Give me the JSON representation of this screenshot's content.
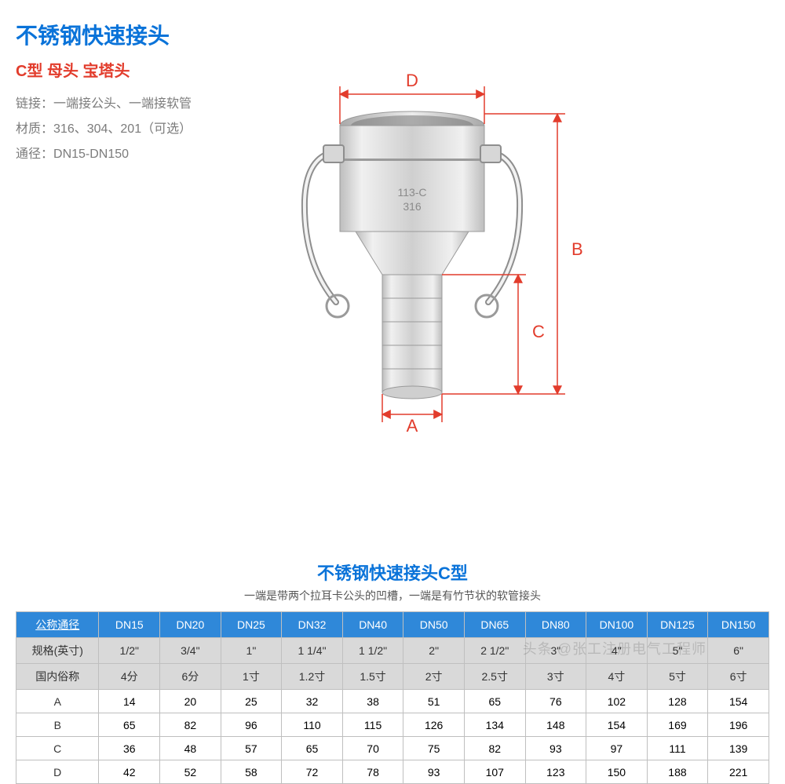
{
  "header": {
    "title_main": "不锈钢快速接头",
    "title_sub": "C型 母头 宝塔头",
    "spec_lines": [
      {
        "label": "链接：",
        "value": "一端接公头、一端接软管"
      },
      {
        "label": "材质：",
        "value": "316、304、201（可选）"
      },
      {
        "label": "通径：",
        "value": "DN15-DN150"
      }
    ]
  },
  "diagram": {
    "labels": {
      "A": "A",
      "B": "B",
      "C": "C",
      "D": "D"
    },
    "dim_color": "#e23c2c",
    "dim_fontsize": 22,
    "label_on_part_top": "113-C",
    "label_on_part_bottom": "316",
    "metal_light": "#e8e8e8",
    "metal_mid": "#cfcfcf",
    "metal_dark": "#a9a9a9",
    "metal_edge": "#8e8e8e"
  },
  "table": {
    "heading": "不锈钢快速接头C型",
    "desc": "一端是带两个拉耳卡公头的凹槽，一端是有竹节状的软管接头",
    "header_bg": "#2f88d9",
    "header_fg": "#ffffff",
    "grey_bg": "#d9d9d9",
    "border_color": "#bfbfbf",
    "col_header_first": "公称通径",
    "columns": [
      "DN15",
      "DN20",
      "DN25",
      "DN32",
      "DN40",
      "DN50",
      "DN65",
      "DN80",
      "DN100",
      "DN125",
      "DN150"
    ],
    "rows": [
      {
        "label": "规格(英寸)",
        "grey": true,
        "cells": [
          "1/2\"",
          "3/4\"",
          "1\"",
          "1 1/4\"",
          "1 1/2\"",
          "2\"",
          "2 1/2\"",
          "3\"",
          "4\"",
          "5\"",
          "6\""
        ]
      },
      {
        "label": "国内俗称",
        "grey": true,
        "cells": [
          "4分",
          "6分",
          "1寸",
          "1.2寸",
          "1.5寸",
          "2寸",
          "2.5寸",
          "3寸",
          "4寸",
          "5寸",
          "6寸"
        ]
      },
      {
        "label": "A",
        "grey": false,
        "cells": [
          "14",
          "20",
          "25",
          "32",
          "38",
          "51",
          "65",
          "76",
          "102",
          "128",
          "154"
        ]
      },
      {
        "label": "B",
        "grey": false,
        "cells": [
          "65",
          "82",
          "96",
          "110",
          "115",
          "126",
          "134",
          "148",
          "154",
          "169",
          "196"
        ]
      },
      {
        "label": "C",
        "grey": false,
        "cells": [
          "36",
          "48",
          "57",
          "65",
          "70",
          "75",
          "82",
          "93",
          "97",
          "111",
          "139"
        ]
      },
      {
        "label": "D",
        "grey": false,
        "cells": [
          "42",
          "52",
          "58",
          "72",
          "78",
          "93",
          "107",
          "123",
          "150",
          "188",
          "221"
        ]
      }
    ]
  },
  "watermark": "头条 @张工注册电气工程师"
}
